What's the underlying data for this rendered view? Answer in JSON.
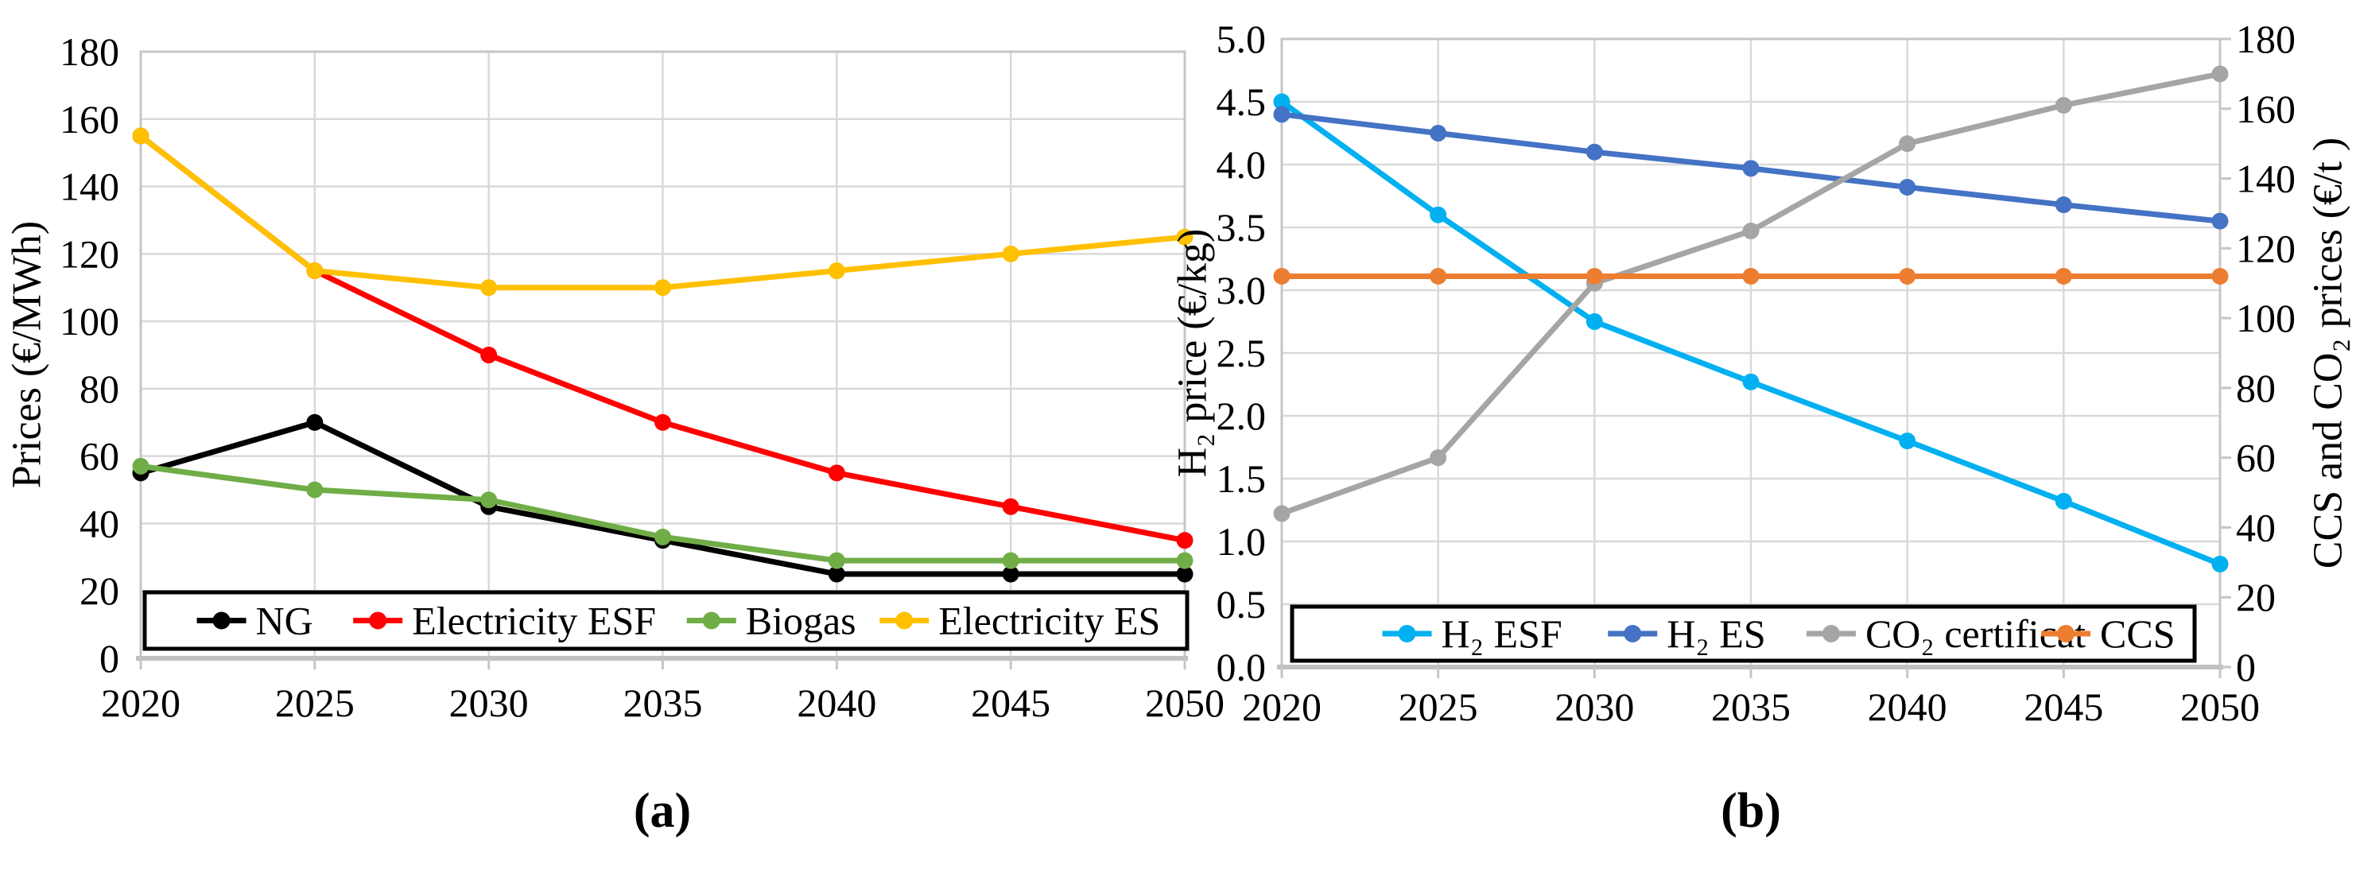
{
  "figure": {
    "background": "#FFFFFF"
  },
  "captions": {
    "a": "(a)",
    "b": "(b)"
  },
  "chart_data": [
    {
      "id": "a",
      "type": "line",
      "title": "",
      "xlabel": "",
      "ylabel": "Prices (€/MWh)",
      "x": [
        2020,
        2025,
        2030,
        2035,
        2040,
        2045,
        2050
      ],
      "x_labels": [
        "2020",
        "2025",
        "2030",
        "2035",
        "2040",
        "2045",
        "2050"
      ],
      "ylim": [
        0,
        180
      ],
      "yticks": {
        "values": [
          0,
          20,
          40,
          60,
          80,
          100,
          120,
          140,
          160,
          180
        ],
        "labels": [
          "0",
          "20",
          "40",
          "60",
          "80",
          "100",
          "120",
          "140",
          "160",
          "180"
        ]
      },
      "grid": true,
      "legend_position": "bottom-inside",
      "series": [
        {
          "name": "NG",
          "color": "#000000",
          "values": [
            55,
            70,
            45,
            35,
            25,
            25,
            25
          ]
        },
        {
          "name": "Electricity ESF",
          "color": "#FF0000",
          "values": [
            155,
            115,
            90,
            70,
            55,
            45,
            35
          ]
        },
        {
          "name": "Biogas",
          "color": "#70AD47",
          "values": [
            57,
            50,
            47,
            36,
            29,
            29,
            29
          ]
        },
        {
          "name": "Electricity ES",
          "color": "#FFC000",
          "values": [
            155,
            115,
            110,
            110,
            115,
            120,
            125
          ]
        }
      ]
    },
    {
      "id": "b",
      "type": "line",
      "title": "",
      "xlabel": "",
      "ylabel_left": "H₂ price  (€/kg)",
      "ylabel_right": "CCS and CO₂ prices (€/t )",
      "x": [
        2020,
        2025,
        2030,
        2035,
        2040,
        2045,
        2050
      ],
      "x_labels": [
        "2020",
        "2025",
        "2030",
        "2035",
        "2040",
        "2045",
        "2050"
      ],
      "ylim_left": [
        0,
        5
      ],
      "yticks_left": {
        "values": [
          0,
          0.5,
          1,
          1.5,
          2,
          2.5,
          3,
          3.5,
          4,
          4.5,
          5
        ],
        "labels": [
          "0.0",
          "0.5",
          "1.0",
          "1.5",
          "2.0",
          "2.5",
          "3.0",
          "3.5",
          "4.0",
          "4.5",
          "5.0"
        ]
      },
      "ylim_right": [
        0,
        180
      ],
      "yticks_right": {
        "values": [
          0,
          20,
          40,
          60,
          80,
          100,
          120,
          140,
          160,
          180
        ],
        "labels": [
          "0",
          "20",
          "40",
          "60",
          "80",
          "100",
          "120",
          "140",
          "160",
          "180"
        ]
      },
      "grid": true,
      "legend_position": "bottom-inside",
      "series": [
        {
          "name": "H₂ ESF",
          "axis": "left",
          "color": "#00B0F0",
          "values": [
            4.5,
            3.6,
            2.75,
            2.27,
            1.8,
            1.32,
            0.82
          ]
        },
        {
          "name": "H₂ ES",
          "axis": "left",
          "color": "#4472C4",
          "values": [
            4.4,
            4.25,
            4.1,
            3.97,
            3.82,
            3.68,
            3.55
          ]
        },
        {
          "name": "CO₂ certificat",
          "axis": "right",
          "color": "#A5A5A5",
          "values": [
            44,
            60,
            110,
            125,
            150,
            161,
            170
          ]
        },
        {
          "name": "CCS",
          "axis": "right",
          "color": "#ED7D31",
          "values": [
            112,
            112,
            112,
            112,
            112,
            112,
            112
          ]
        }
      ]
    }
  ]
}
